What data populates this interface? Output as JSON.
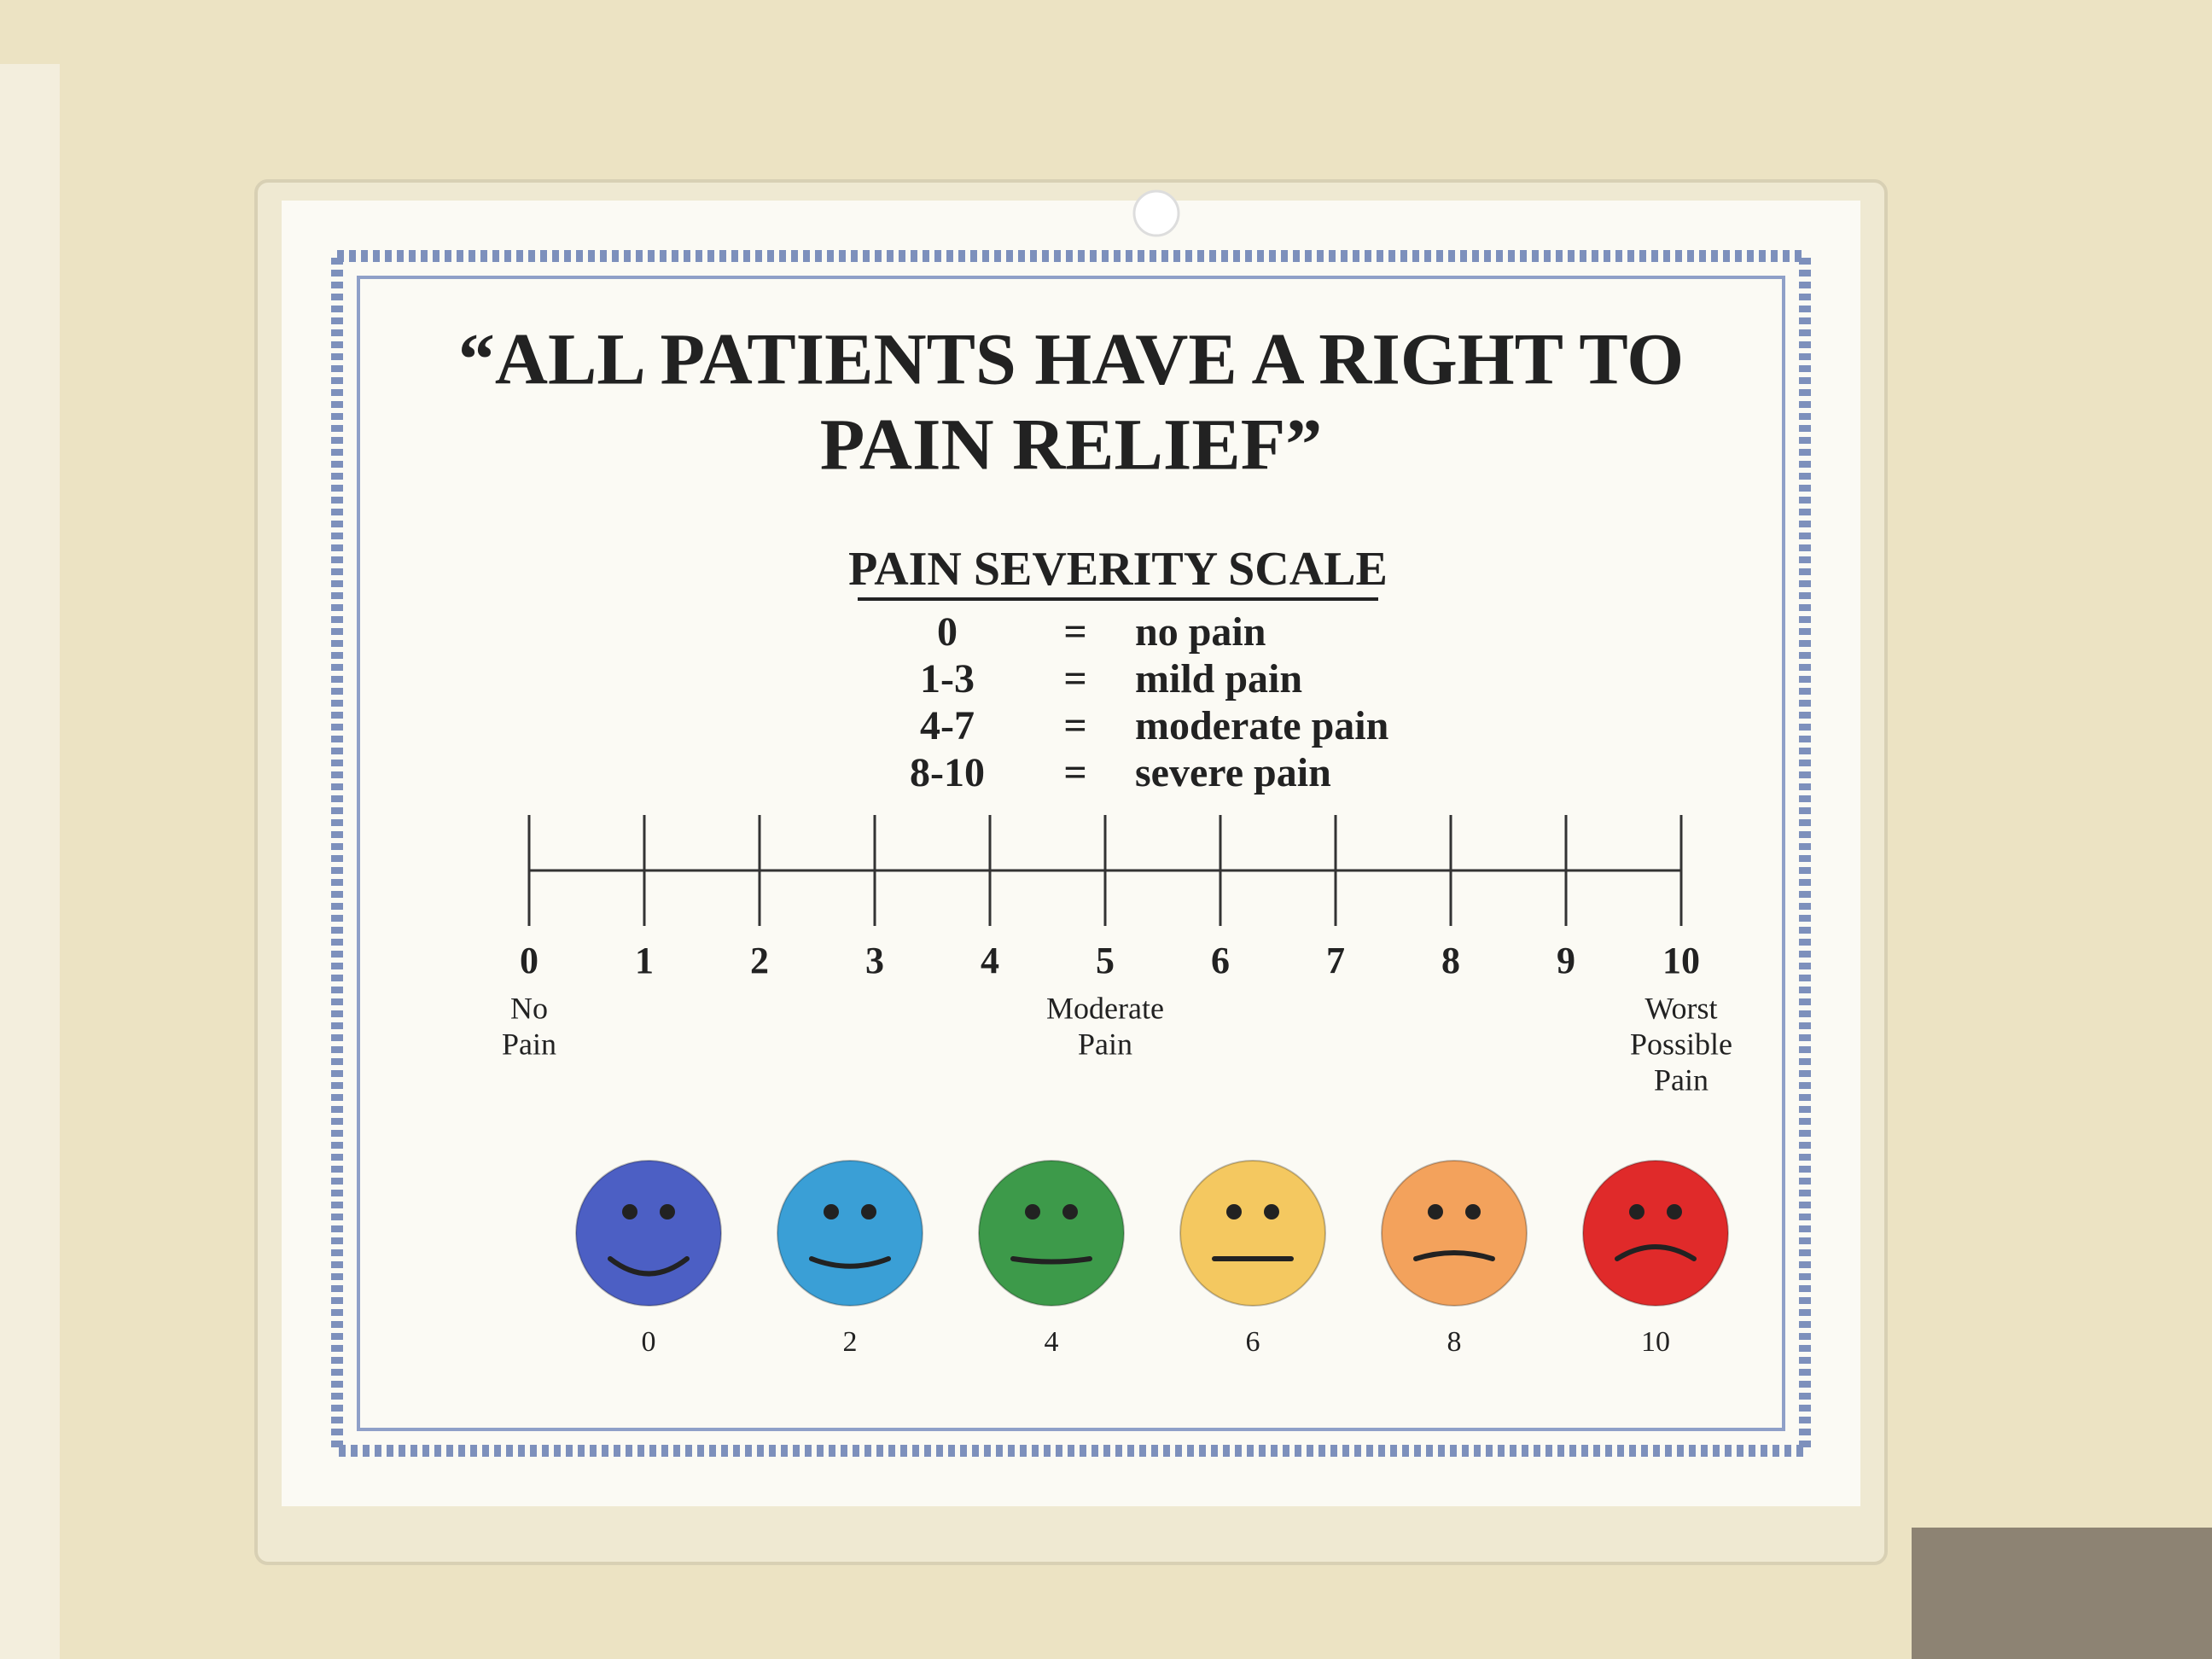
{
  "sign": {
    "title_lines": [
      "“ALL PATIENTS HAVE A RIGHT TO",
      "PAIN RELIEF”"
    ],
    "scale": {
      "heading": "PAIN SEVERITY SCALE",
      "rows": [
        [
          "0",
          "=",
          "no pain"
        ],
        [
          "1-3",
          "=",
          "mild pain"
        ],
        [
          "4-7",
          "=",
          "moderate pain"
        ],
        [
          "8-10",
          "=",
          "severe pain"
        ]
      ]
    },
    "number_line": {
      "ticks": [
        "0",
        "1",
        "2",
        "3",
        "4",
        "5",
        "6",
        "7",
        "8",
        "9",
        "10"
      ],
      "annotations": [
        {
          "tick": 0,
          "lines": [
            "No",
            "Pain"
          ]
        },
        {
          "tick": 5,
          "lines": [
            "Moderate",
            "Pain"
          ]
        },
        {
          "tick": 10,
          "lines": [
            "Worst",
            "Possible",
            "Pain"
          ]
        }
      ]
    },
    "faces": [
      {
        "label": "0",
        "color": "#4c5fc4"
      },
      {
        "label": "2",
        "color": "#3a9fd6"
      },
      {
        "label": "4",
        "color": "#3d9a4a"
      },
      {
        "label": "6",
        "color": "#f4c860"
      },
      {
        "label": "8",
        "color": "#f3a25c"
      },
      {
        "label": "10",
        "color": "#e02a2a"
      }
    ]
  }
}
